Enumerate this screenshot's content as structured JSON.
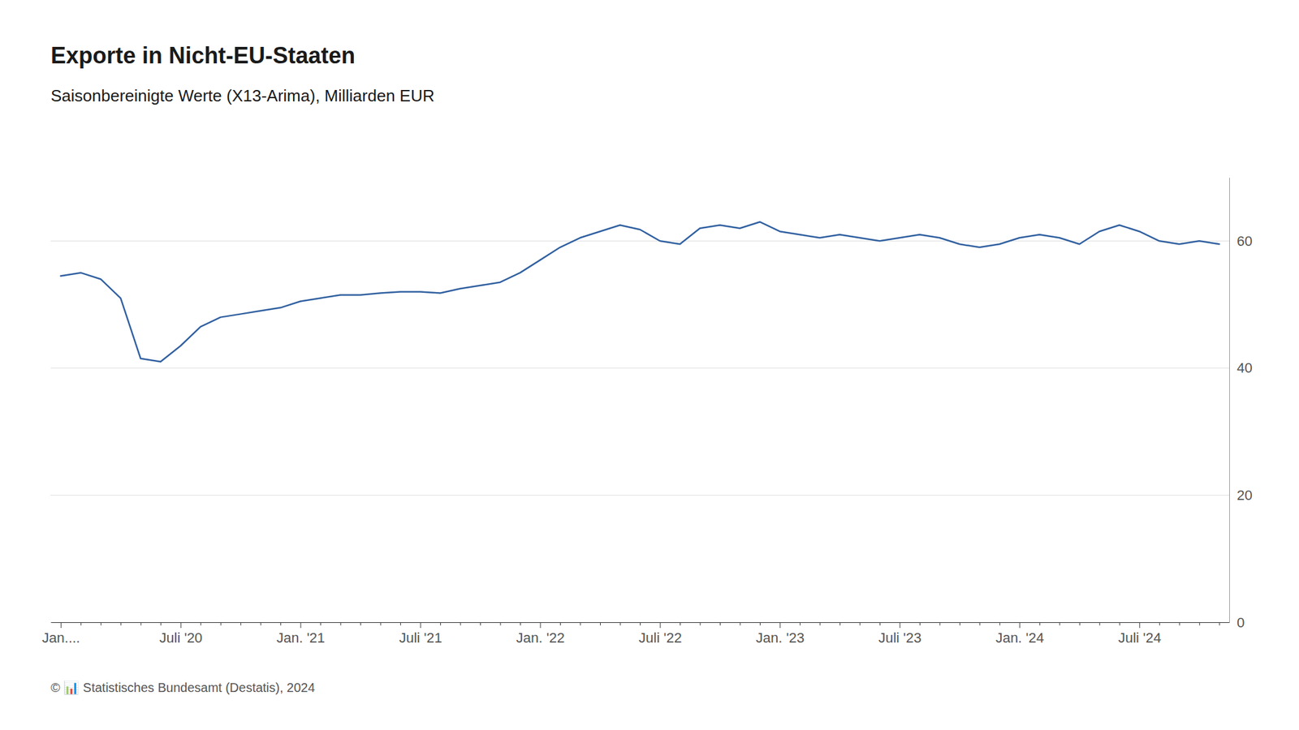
{
  "chart_data": {
    "type": "line",
    "title": "Exporte in Nicht-EU-Staaten",
    "subtitle": "Saisonbereinigte Werte (X13-Arima), Milliarden EUR",
    "footnote": "© 📊 Statistisches Bundesamt (Destatis), 2024",
    "color": "#3060A0",
    "ylim": [
      0,
      70
    ],
    "yticks": [
      0,
      20,
      40,
      60
    ],
    "grid": true,
    "categories": [
      "Jan....",
      null,
      null,
      null,
      null,
      null,
      "Juli '20",
      null,
      null,
      null,
      null,
      null,
      "Jan. '21",
      null,
      null,
      null,
      null,
      null,
      "Juli '21",
      null,
      null,
      null,
      null,
      null,
      "Jan. '22",
      null,
      null,
      null,
      null,
      null,
      "Juli '22",
      null,
      null,
      null,
      null,
      null,
      "Jan. '23",
      null,
      null,
      null,
      null,
      null,
      "Juli '23",
      null,
      null,
      null,
      null,
      null,
      "Jan. '24",
      null,
      null,
      null,
      null,
      null,
      "Juli '24",
      null,
      null,
      null,
      null
    ],
    "values": [
      54.5,
      55.0,
      54.0,
      51.0,
      41.5,
      41.0,
      43.5,
      46.5,
      48.0,
      48.5,
      49.0,
      49.5,
      50.5,
      51.0,
      51.5,
      51.5,
      51.8,
      52.0,
      52.0,
      51.8,
      52.5,
      53.0,
      53.5,
      55.0,
      57.0,
      59.0,
      60.5,
      61.5,
      62.5,
      61.8,
      60.0,
      59.5,
      62.0,
      62.5,
      62.0,
      63.0,
      61.5,
      61.0,
      60.5,
      61.0,
      60.5,
      60.0,
      60.5,
      61.0,
      60.5,
      59.5,
      59.0,
      59.5,
      60.5,
      61.0,
      60.5,
      59.5,
      61.5,
      62.5,
      61.5,
      60.0,
      59.5,
      60.0,
      59.5
    ]
  }
}
